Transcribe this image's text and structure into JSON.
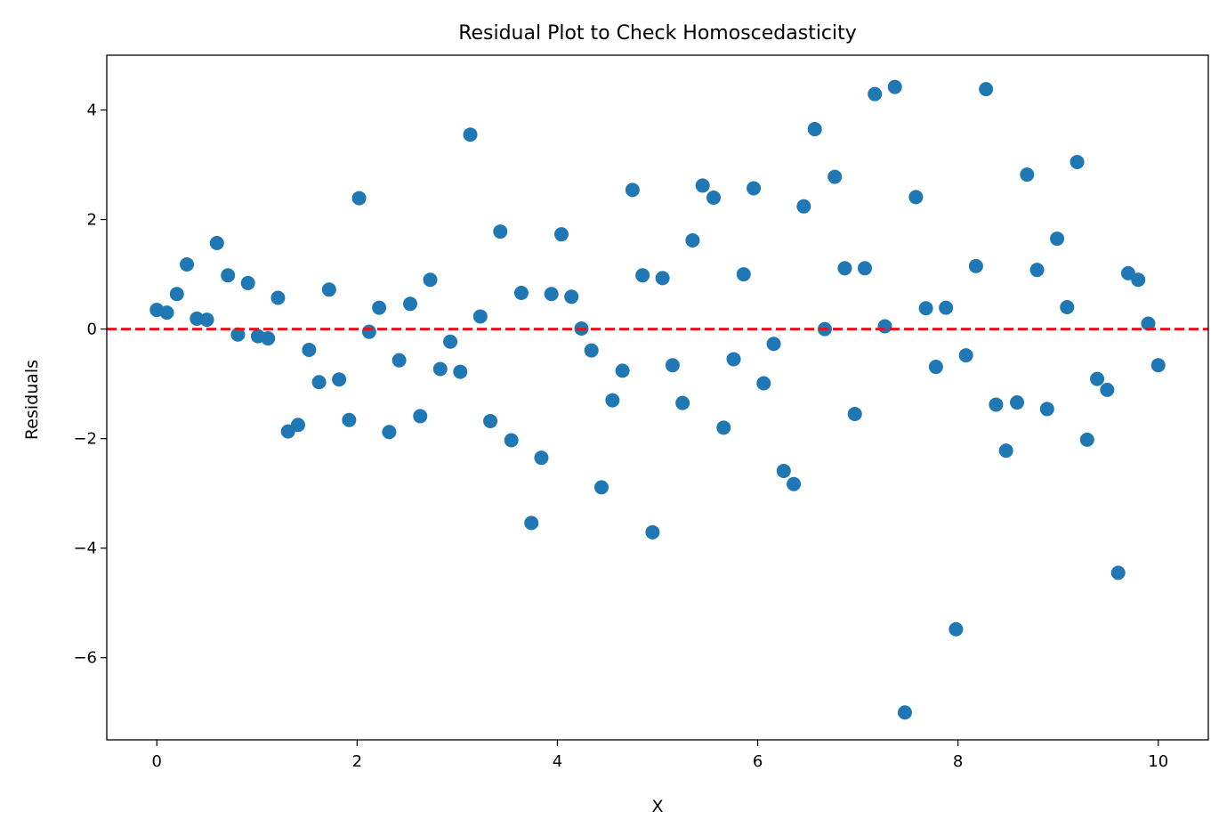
{
  "chart_data": {
    "type": "scatter",
    "title": "Residual Plot to Check Homoscedasticity",
    "xlabel": "X",
    "ylabel": "Residuals",
    "xlim": [
      -0.5,
      10.5
    ],
    "ylim": [
      -7.5,
      5
    ],
    "xticks": [
      0,
      2,
      4,
      6,
      8,
      10
    ],
    "yticks": [
      4,
      2,
      0,
      -2,
      -4,
      -6
    ],
    "ytick_labels": [
      "4",
      "2",
      "0",
      "−2",
      "−4",
      "−6"
    ],
    "grid": false,
    "marker_color": "#1f77b4",
    "reference_line": {
      "y": 0,
      "style": "dashed",
      "color": "#ee1111"
    },
    "x": [
      0.0,
      0.1,
      0.2,
      0.3,
      0.4,
      0.5,
      0.6,
      0.71,
      0.81,
      0.91,
      1.01,
      1.11,
      1.21,
      1.31,
      1.41,
      1.52,
      1.62,
      1.72,
      1.82,
      1.92,
      2.02,
      2.12,
      2.22,
      2.32,
      2.42,
      2.53,
      2.63,
      2.73,
      2.83,
      2.93,
      3.03,
      3.13,
      3.23,
      3.33,
      3.43,
      3.54,
      3.64,
      3.74,
      3.84,
      3.94,
      4.04,
      4.14,
      4.24,
      4.34,
      4.44,
      4.55,
      4.65,
      4.75,
      4.85,
      4.95,
      5.05,
      5.15,
      5.25,
      5.35,
      5.45,
      5.56,
      5.66,
      5.76,
      5.86,
      5.96,
      6.06,
      6.16,
      6.26,
      6.36,
      6.46,
      6.57,
      6.67,
      6.77,
      6.87,
      6.97,
      7.07,
      7.17,
      7.27,
      7.37,
      7.47,
      7.58,
      7.68,
      7.78,
      7.88,
      7.98,
      8.08,
      8.18,
      8.28,
      8.38,
      8.48,
      8.59,
      8.69,
      8.79,
      8.89,
      8.99,
      9.09,
      9.19,
      9.29,
      9.39,
      9.49,
      9.6,
      9.7,
      9.8,
      9.9,
      10.0
    ],
    "y": [
      0.35,
      0.3,
      0.64,
      1.18,
      0.19,
      0.17,
      1.57,
      0.98,
      -0.1,
      0.84,
      -0.13,
      -0.17,
      0.57,
      -1.87,
      -1.75,
      -0.38,
      -0.97,
      0.72,
      -0.92,
      -1.66,
      2.39,
      -0.05,
      0.39,
      -1.88,
      -0.57,
      0.46,
      -1.59,
      0.9,
      -0.73,
      -0.23,
      -0.78,
      3.55,
      0.23,
      -1.68,
      1.78,
      -2.03,
      0.66,
      -3.54,
      -2.35,
      0.64,
      1.73,
      0.59,
      0.01,
      -0.39,
      -2.89,
      -1.3,
      -0.76,
      2.54,
      0.98,
      -3.71,
      0.93,
      -0.66,
      -1.35,
      1.62,
      2.62,
      2.4,
      -1.8,
      -0.55,
      1.0,
      2.57,
      -0.99,
      -0.27,
      -2.59,
      -2.83,
      2.24,
      3.65,
      0.0,
      2.78,
      1.11,
      -1.55,
      1.11,
      4.29,
      0.05,
      4.42,
      -7.0,
      2.41,
      0.38,
      -0.69,
      0.39,
      -5.48,
      -0.48,
      1.15,
      4.38,
      -1.38,
      -2.22,
      -1.34,
      2.82,
      1.08,
      -1.46,
      1.65,
      0.4,
      3.05,
      -2.02,
      -0.91,
      -1.11,
      -4.45,
      1.02,
      0.9,
      0.1,
      -0.66
    ]
  }
}
